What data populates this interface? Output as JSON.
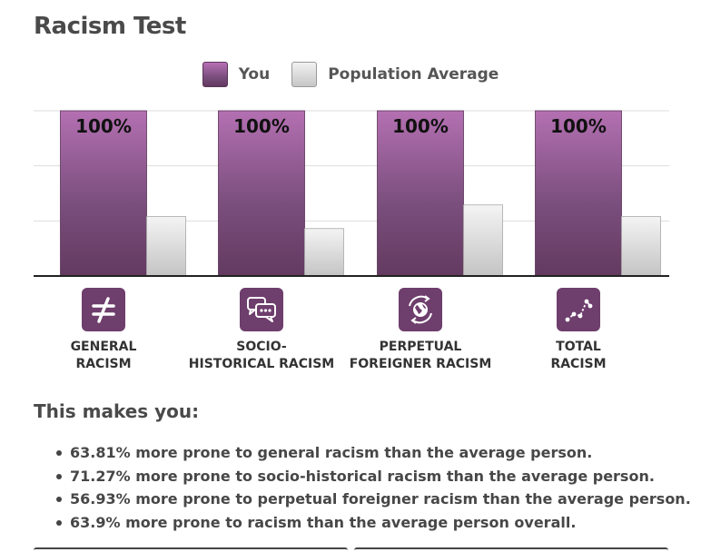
{
  "page": {
    "title": "Racism Test"
  },
  "legend": {
    "you": "You",
    "average": "Population Average"
  },
  "colors": {
    "you_top": "#b76fb5",
    "you_bottom": "#63395f",
    "avg_top": "#f2f2f2",
    "avg_bottom": "#c6c6c6",
    "icon_bg": "#6e3e6d",
    "grid": "#dddddd",
    "axis": "#222222"
  },
  "chart_data": {
    "type": "bar",
    "categories": [
      "GENERAL\nRACISM",
      "SOCIO-\nHISTORICAL RACISM",
      "PERPETUAL\nFOREIGNER RACISM",
      "TOTAL\nRACISM"
    ],
    "series": [
      {
        "name": "You",
        "values": [
          100,
          100,
          100,
          100
        ],
        "labels": [
          "100%",
          "100%",
          "100%",
          "100%"
        ]
      },
      {
        "name": "Population Average",
        "values": [
          36,
          28.7,
          43,
          36
        ]
      }
    ],
    "ylim": [
      0,
      100
    ],
    "grid": true,
    "legend": "top-center"
  },
  "categories": [
    {
      "label": "GENERAL\nRACISM",
      "icon": "not-equal-icon"
    },
    {
      "label": "SOCIO-\nHISTORICAL RACISM",
      "icon": "chat-bubbles-icon"
    },
    {
      "label": "PERPETUAL\nFOREIGNER RACISM",
      "icon": "globe-icon"
    },
    {
      "label": "TOTAL\nRACISM",
      "icon": "line-chart-icon"
    }
  ],
  "summary": {
    "heading": "This makes you:",
    "items": [
      "63.81% more prone to general racism than the average person.",
      "71.27% more prone to socio-historical racism than the average person.",
      "56.93% more prone to perpetual foreigner racism than the average person.",
      "63.9% more prone to racism than the average person overall."
    ]
  }
}
